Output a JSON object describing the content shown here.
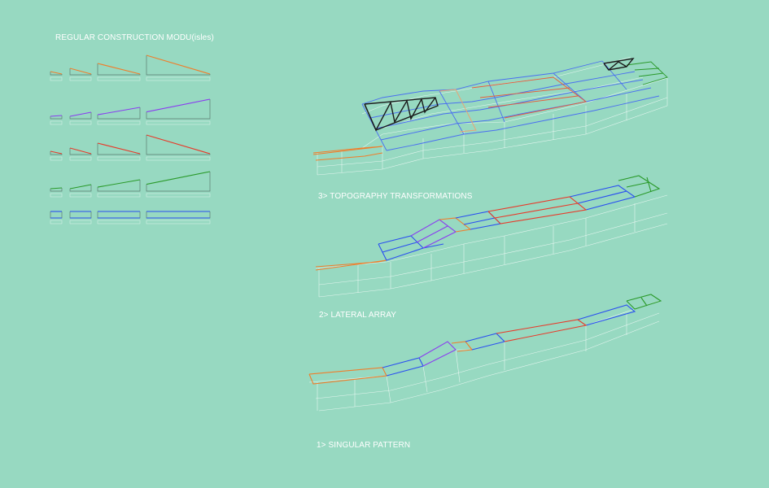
{
  "title": "REGULAR CONSTRUCTION MODU(isles)",
  "diagrams": [
    {
      "label": "3> TOPOGRAPHY TRANSFORMATIONS"
    },
    {
      "label": "2> LATERAL ARRAY"
    },
    {
      "label": "1> SINGULAR PATTERN"
    }
  ],
  "colors": {
    "background": "#97d9c1",
    "orange": "#f07d2a",
    "purple": "#8a3cf0",
    "red": "#e83a2a",
    "green": "#2a9a2a",
    "blue": "#2a4ff0",
    "black": "#1a1a1a",
    "wireframe": "#ffffff"
  },
  "module_rows": [
    "orange",
    "purple",
    "red",
    "green",
    "blue"
  ]
}
